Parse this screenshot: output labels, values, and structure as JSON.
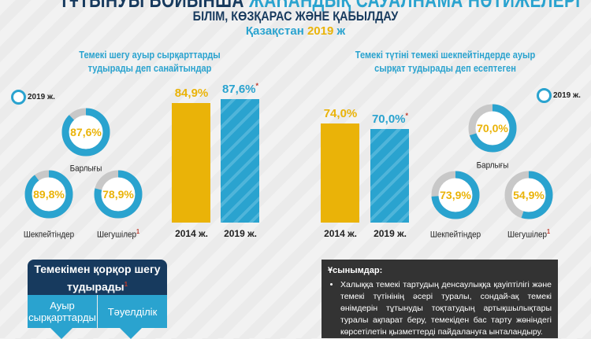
{
  "header": {
    "title_dark": "ТҰТЫНУЫ БОЙЫНША",
    "title_blue": "ЖАҺАНДЫҚ САУАЛНАМА НӘТИЖЕЛЕРІ",
    "subtitle": "БІЛІМ, КӨЗҚАРАС ЖӘНЕ ҚАБЫЛДАУ",
    "country": "Қазақстан",
    "year": "2019",
    "year_suffix": "ж"
  },
  "colors": {
    "navy": "#173a5e",
    "blue": "#2aa3cf",
    "yellow": "#eab308",
    "gray": "#c8c8c8",
    "asterisk": "#c0392b"
  },
  "legend_label": "2019 ж.",
  "chart_data": [
    {
      "type": "bar",
      "title": "Темекі шегу ауыр сырқарттарды тудырады деп санайтындар",
      "categories": [
        "2014 ж.",
        "2019 ж."
      ],
      "values": [
        84.9,
        87.6
      ],
      "labels": [
        "84,9%",
        "87,6%"
      ],
      "marks": [
        "",
        "*"
      ],
      "ylim": [
        0,
        95
      ],
      "donuts": [
        {
          "label": "Барлығы",
          "value": 87.6,
          "text": "87,6%",
          "sup": ""
        },
        {
          "label": "Шекпейтіндер",
          "value": 89.8,
          "text": "89,8%",
          "sup": ""
        },
        {
          "label": "Шегушілер",
          "value": 78.9,
          "text": "78,9%",
          "sup": "1"
        }
      ]
    },
    {
      "type": "bar",
      "title": "Темекі түтіні темекі шекпейтіндерде ауыр сырқат тудырады деп есептеген",
      "categories": [
        "2014 ж.",
        "2019 ж."
      ],
      "values": [
        74.0,
        70.0
      ],
      "labels": [
        "74,0%",
        "70,0%"
      ],
      "marks": [
        "",
        "*"
      ],
      "ylim": [
        0,
        100
      ],
      "donuts": [
        {
          "label": "Барлығы",
          "value": 70.0,
          "text": "70,0%",
          "sup": ""
        },
        {
          "label": "Шекпейтіндер",
          "value": 73.9,
          "text": "73,9%",
          "sup": ""
        },
        {
          "label": "Шегушілер",
          "value": 54.9,
          "text": "54,9%",
          "sup": "1"
        }
      ]
    }
  ],
  "hookah_box": {
    "title": "Темекімен қорқор шегу тудырады",
    "sup": "1",
    "cells": [
      "Ауыр сырқарттарды",
      "Тәуелділік"
    ]
  },
  "recommendations": {
    "heading": "Ұсынымдар:",
    "items": [
      "Халыққа темекі тартудың денсаулыққа қауіптілігі және темекі түтінінің әсері туралы, сондай-ақ темекі өнімдерін тұтынуды тоқтатудың артықшылықтары туралы ақпарат беру, темекіден бас тарту жөніндегі көрсетілетін қызметтерді пайдалануға ынталандыру."
    ]
  }
}
